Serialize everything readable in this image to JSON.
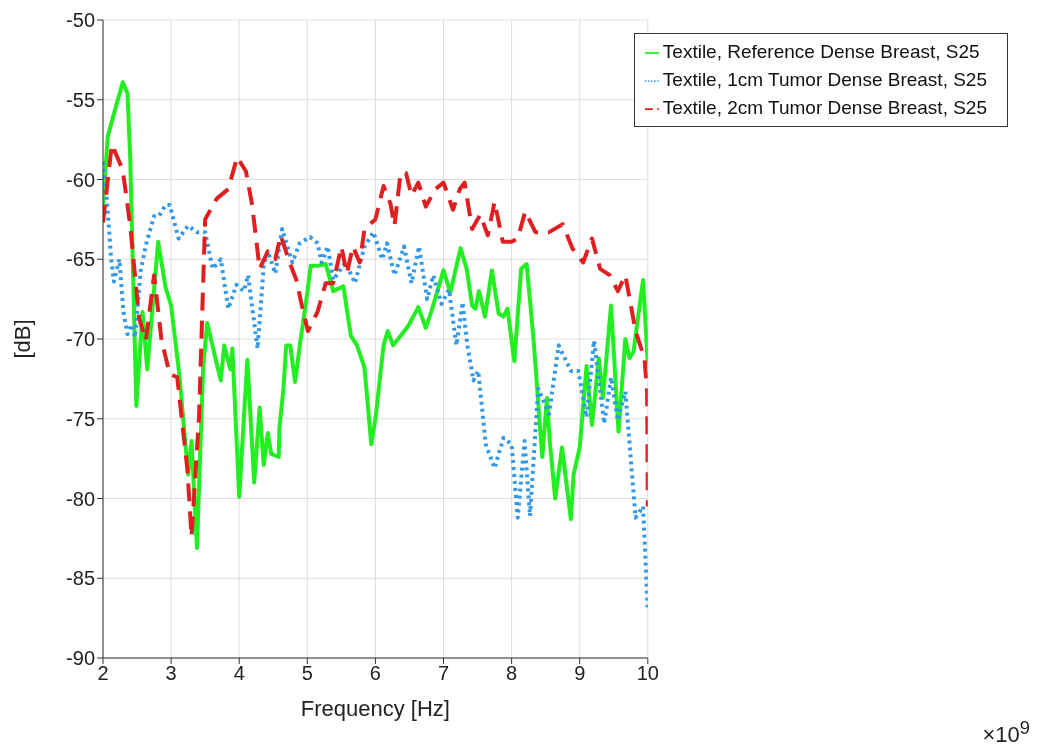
{
  "chart_data": {
    "type": "line",
    "xlabel": "Frequency [Hz]",
    "ylabel": "[dB]",
    "annotations": [
      "×10$^{9}$"
    ],
    "xlim": [
      2,
      10
    ],
    "xticks": [
      2,
      3,
      4,
      5,
      6,
      7,
      8,
      9,
      10
    ],
    "ylim": [
      -90,
      -50
    ],
    "yticks": [
      -90,
      -85,
      -80,
      -75,
      -70,
      -65,
      -60,
      -55,
      -50
    ],
    "grid": true,
    "legend": "top right",
    "marker": "none",
    "series": [
      {
        "name": "Textile, Reference Dense Breast, S25",
        "color": "#22ee22",
        "line_style": "solid",
        "x": [
          2.0,
          2.07,
          2.14,
          2.29,
          2.36,
          2.4,
          2.49,
          2.58,
          2.65,
          2.81,
          2.92,
          3.0,
          3.12,
          3.25,
          3.3,
          3.38,
          3.47,
          3.53,
          3.64,
          3.73,
          3.78,
          3.87,
          3.9,
          4.0,
          4.12,
          4.22,
          4.3,
          4.36,
          4.42,
          4.47,
          4.58,
          4.59,
          4.65,
          4.69,
          4.75,
          4.82,
          4.89,
          5.0,
          5.05,
          5.17,
          5.27,
          5.38,
          5.53,
          5.64,
          5.73,
          5.84,
          5.94,
          6.0,
          6.12,
          6.18,
          6.26,
          6.48,
          6.63,
          6.74,
          6.82,
          7.0,
          7.1,
          7.25,
          7.34,
          7.42,
          7.47,
          7.52,
          7.61,
          7.71,
          7.81,
          7.88,
          7.94,
          8.04,
          8.14,
          8.22,
          8.32,
          8.45,
          8.52,
          8.56,
          8.64,
          8.74,
          8.87,
          8.91,
          9.0,
          9.1,
          9.18,
          9.28,
          9.34,
          9.46,
          9.57,
          9.67,
          9.73,
          9.79,
          9.93,
          10.0
        ],
        "values": [
          -61.6,
          -57.3,
          -56.2,
          -53.9,
          -54.6,
          -58.7,
          -74.2,
          -68.3,
          -71.9,
          -63.9,
          -66.8,
          -67.9,
          -72.2,
          -78.5,
          -76.4,
          -83.1,
          -71.8,
          -69.0,
          -71.0,
          -72.6,
          -70.4,
          -71.9,
          -70.6,
          -79.9,
          -71.3,
          -79.0,
          -74.3,
          -77.9,
          -75.9,
          -77.2,
          -77.4,
          -75.6,
          -73.1,
          -70.4,
          -70.4,
          -72.7,
          -70.4,
          -67.1,
          -65.4,
          -65.4,
          -65.3,
          -67.0,
          -66.7,
          -69.8,
          -70.4,
          -71.8,
          -76.6,
          -75.0,
          -70.4,
          -69.5,
          -70.4,
          -69.2,
          -68.0,
          -69.3,
          -68.3,
          -65.7,
          -67.1,
          -64.3,
          -65.6,
          -67.9,
          -68.1,
          -67.0,
          -68.6,
          -65.7,
          -68.4,
          -68.6,
          -68.1,
          -71.4,
          -65.6,
          -65.3,
          -69.9,
          -77.4,
          -73.7,
          -76.4,
          -80.0,
          -76.8,
          -81.3,
          -78.5,
          -76.8,
          -71.7,
          -75.4,
          -71.2,
          -73.7,
          -67.9,
          -75.8,
          -70.0,
          -71.2,
          -70.8,
          -66.3,
          -71.6
        ]
      },
      {
        "name": "Textile, 1cm Tumor Dense Breast, S25",
        "color": "#3399e6",
        "line_style": "dotted",
        "x": [
          2.0,
          2.06,
          2.12,
          2.16,
          2.24,
          2.3,
          2.36,
          2.42,
          2.47,
          2.55,
          2.63,
          2.75,
          2.82,
          2.92,
          2.98,
          3.11,
          3.25,
          3.38,
          3.5,
          3.61,
          3.73,
          3.84,
          3.96,
          4.07,
          4.13,
          4.2,
          4.27,
          4.36,
          4.42,
          4.53,
          4.63,
          4.78,
          4.89,
          5.04,
          5.15,
          5.21,
          5.3,
          5.38,
          5.56,
          5.7,
          5.84,
          5.97,
          6.1,
          6.17,
          6.28,
          6.42,
          6.53,
          6.64,
          6.76,
          6.85,
          6.97,
          7.08,
          7.19,
          7.28,
          7.35,
          7.44,
          7.51,
          7.62,
          7.75,
          7.88,
          8.0,
          8.09,
          8.19,
          8.27,
          8.39,
          8.55,
          8.69,
          8.87,
          8.98,
          9.1,
          9.21,
          9.36,
          9.46,
          9.56,
          9.67,
          9.82,
          9.93,
          10.0
        ],
        "values": [
          -58.9,
          -61.4,
          -65.0,
          -66.4,
          -65.0,
          -68.3,
          -69.7,
          -69.1,
          -69.9,
          -65.8,
          -64.1,
          -62.3,
          -62.3,
          -61.6,
          -61.6,
          -63.7,
          -62.9,
          -63.3,
          -63.3,
          -65.6,
          -65.0,
          -68.1,
          -66.6,
          -67.0,
          -66.0,
          -68.3,
          -70.6,
          -65.4,
          -64.5,
          -65.9,
          -63.1,
          -65.2,
          -64.0,
          -63.6,
          -64.0,
          -65.2,
          -64.2,
          -66.3,
          -65.2,
          -66.5,
          -64.2,
          -63.3,
          -65.0,
          -64.0,
          -66.0,
          -64.2,
          -66.5,
          -64.2,
          -67.5,
          -66.0,
          -67.8,
          -66.9,
          -70.4,
          -67.7,
          -70.4,
          -72.6,
          -72.0,
          -76.6,
          -78.1,
          -76.2,
          -76.6,
          -81.2,
          -76.4,
          -81.1,
          -73.1,
          -74.7,
          -70.4,
          -72.0,
          -72.0,
          -74.9,
          -70.1,
          -75.3,
          -72.4,
          -75.1,
          -73.3,
          -81.2,
          -80.5,
          -87.0
        ]
      },
      {
        "name": "Textile, 2cm Tumor Dense Breast, S25",
        "color": "#e02020",
        "line_style": "dashed",
        "x": [
          2.0,
          2.13,
          2.29,
          2.4,
          2.53,
          2.63,
          2.75,
          2.86,
          2.98,
          3.09,
          3.24,
          3.3,
          3.41,
          3.5,
          3.67,
          3.84,
          3.97,
          4.1,
          4.19,
          4.3,
          4.42,
          4.53,
          4.61,
          4.74,
          4.84,
          4.94,
          5.01,
          5.15,
          5.27,
          5.38,
          5.5,
          5.58,
          5.67,
          5.77,
          5.84,
          6.0,
          6.12,
          6.22,
          6.28,
          6.37,
          6.45,
          6.53,
          6.63,
          6.74,
          6.88,
          7.0,
          7.14,
          7.24,
          7.31,
          7.42,
          7.54,
          7.65,
          7.75,
          7.87,
          8.0,
          8.09,
          8.2,
          8.35,
          8.55,
          8.75,
          8.89,
          9.05,
          9.18,
          9.3,
          9.44,
          9.56,
          9.67,
          9.82,
          9.95,
          9.99,
          10.0
        ],
        "values": [
          -62.7,
          -57.8,
          -59.4,
          -62.9,
          -68.7,
          -70.1,
          -66.0,
          -70.1,
          -72.2,
          -72.4,
          -78.2,
          -82.4,
          -74.9,
          -62.5,
          -61.2,
          -60.6,
          -58.6,
          -59.5,
          -61.6,
          -65.6,
          -64.5,
          -65.0,
          -63.5,
          -65.2,
          -66.3,
          -68.3,
          -69.5,
          -68.3,
          -66.5,
          -66.5,
          -64.2,
          -65.9,
          -64.2,
          -65.2,
          -63.1,
          -62.5,
          -60.4,
          -61.5,
          -62.9,
          -59.6,
          -59.6,
          -61.0,
          -60.2,
          -61.7,
          -60.6,
          -60.2,
          -61.9,
          -60.6,
          -60.2,
          -63.1,
          -62.2,
          -63.5,
          -61.4,
          -63.9,
          -63.9,
          -63.7,
          -62.0,
          -63.3,
          -63.3,
          -62.8,
          -64.3,
          -65.2,
          -63.7,
          -65.6,
          -66.0,
          -67.0,
          -66.0,
          -69.5,
          -71.2,
          -73.3,
          -80.5
        ]
      }
    ]
  }
}
